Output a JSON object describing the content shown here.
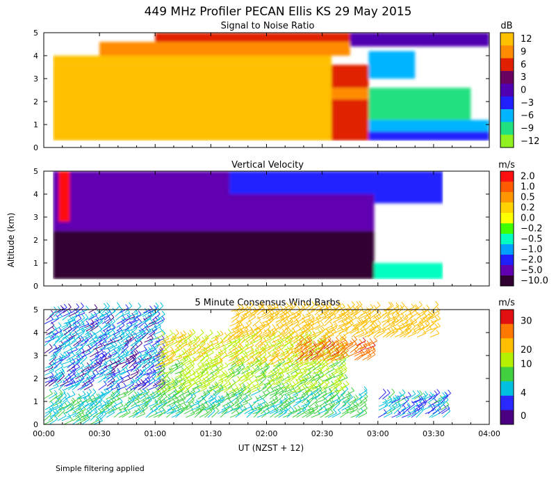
{
  "title": "449 MHz Profiler PECAN Ellis KS 29 May 2015",
  "ylabel": "Altitude (km)",
  "xlabel": "UT  (NZST + 12)",
  "footnote": "Simple filtering applied",
  "chart_data": [
    {
      "type": "heatmap",
      "title": "Signal to Noise Ratio",
      "unit": "dB",
      "xlim": [
        0,
        240
      ],
      "ylim": [
        0,
        5
      ],
      "x_ticks": [
        "00:00",
        "00:30",
        "01:00",
        "01:30",
        "02:00",
        "02:30",
        "03:00",
        "03:30",
        "04:00"
      ],
      "y_ticks": [
        "0",
        "1",
        "2",
        "3",
        "4",
        "5"
      ],
      "colorbar": {
        "labels": [
          "12",
          "9",
          "6",
          "3",
          "0",
          "−3",
          "−6",
          "−9",
          "−12"
        ],
        "colors": [
          "#ffc000",
          "#ff8c00",
          "#e02000",
          "#6a0060",
          "#5000b0",
          "#2020ff",
          "#00b4ff",
          "#20e080",
          "#90f020"
        ]
      },
      "regions": [
        {
          "x": [
            5,
            155
          ],
          "z": [
            0.3,
            3.6
          ],
          "db": 12
        },
        {
          "x": [
            5,
            155
          ],
          "z": [
            3.6,
            4.0
          ],
          "db": 12
        },
        {
          "x": [
            155,
            175
          ],
          "z": [
            0.3,
            2.1
          ],
          "db": 6
        },
        {
          "x": [
            155,
            175
          ],
          "z": [
            2.1,
            2.6
          ],
          "db": 9
        },
        {
          "x": [
            155,
            175
          ],
          "z": [
            2.6,
            3.6
          ],
          "db": 6
        },
        {
          "x": [
            175,
            240
          ],
          "z": [
            0.3,
            0.7
          ],
          "db": -3
        },
        {
          "x": [
            175,
            240
          ],
          "z": [
            0.7,
            1.2
          ],
          "db": -6
        },
        {
          "x": [
            175,
            230
          ],
          "z": [
            1.2,
            2.6
          ],
          "db": -9
        },
        {
          "x": [
            175,
            200
          ],
          "z": [
            3.0,
            4.2
          ],
          "db": -6
        },
        {
          "x": [
            30,
            165
          ],
          "z": [
            4.0,
            4.6
          ],
          "db": 9
        },
        {
          "x": [
            60,
            165
          ],
          "z": [
            4.6,
            5.0
          ],
          "db": 6
        },
        {
          "x": [
            165,
            240
          ],
          "z": [
            4.4,
            5.0
          ],
          "db": 0
        }
      ]
    },
    {
      "type": "heatmap",
      "title": "Vertical Velocity",
      "unit": "m/s",
      "xlim": [
        0,
        240
      ],
      "ylim": [
        0,
        5
      ],
      "x_ticks": [
        "00:00",
        "00:30",
        "01:00",
        "01:30",
        "02:00",
        "02:30",
        "03:00",
        "03:30",
        "04:00"
      ],
      "y_ticks": [
        "0",
        "1",
        "2",
        "3",
        "4",
        "5"
      ],
      "colorbar": {
        "labels": [
          "2.0",
          "1.0",
          "0.5",
          "0.2",
          "0.0",
          "−0.2",
          "−0.5",
          "−1.0",
          "−2.0",
          "−5.0",
          "−10.0"
        ],
        "colors": [
          "#ff1010",
          "#ff5a00",
          "#ff9600",
          "#ffd200",
          "#ffff00",
          "#40ff00",
          "#00ffc0",
          "#00a0ff",
          "#2020ff",
          "#6000b0",
          "#300030"
        ]
      },
      "regions": [
        {
          "x": [
            5,
            178
          ],
          "z": [
            0.3,
            2.4
          ],
          "w": -10.0
        },
        {
          "x": [
            5,
            178
          ],
          "z": [
            2.4,
            5.0
          ],
          "w": -5.0
        },
        {
          "x": [
            8,
            14
          ],
          "z": [
            2.8,
            5.0
          ],
          "w": 2.0
        },
        {
          "x": [
            100,
            178
          ],
          "z": [
            4.0,
            5.0
          ],
          "w": -2.0
        },
        {
          "x": [
            178,
            215
          ],
          "z": [
            0.3,
            1.0
          ],
          "w": -0.5
        },
        {
          "x": [
            178,
            215
          ],
          "z": [
            3.6,
            5.0
          ],
          "w": -2.0
        }
      ]
    },
    {
      "type": "wind_barbs",
      "title": "5 Minute Consensus Wind Barbs",
      "unit": "m/s",
      "xlim": [
        0,
        240
      ],
      "ylim": [
        0,
        5
      ],
      "x_ticks": [
        "00:00",
        "00:30",
        "01:00",
        "01:30",
        "02:00",
        "02:30",
        "03:00",
        "03:30",
        "04:00"
      ],
      "y_ticks": [
        "0",
        "1",
        "2",
        "3",
        "4",
        "5"
      ],
      "colorbar": {
        "labels": [
          "30",
          "20",
          "10",
          "4",
          "0"
        ],
        "colors": [
          "#e01010",
          "#ff7800",
          "#ffbe00",
          "#b4f000",
          "#40d040",
          "#00c0e0",
          "#2828ff",
          "#4b0082"
        ]
      },
      "bands": [
        {
          "x": [
            0,
            30
          ],
          "z": [
            0.0,
            1.2
          ],
          "speed": 8
        },
        {
          "x": [
            30,
            170
          ],
          "z": [
            0.3,
            1.4
          ],
          "speed": 9
        },
        {
          "x": [
            0,
            60
          ],
          "z": [
            1.5,
            5.0
          ],
          "speed": 5
        },
        {
          "x": [
            60,
            160
          ],
          "z": [
            1.4,
            2.6
          ],
          "speed": 13
        },
        {
          "x": [
            60,
            160
          ],
          "z": [
            2.6,
            3.8
          ],
          "speed": 19
        },
        {
          "x": [
            135,
            175
          ],
          "z": [
            2.8,
            3.6
          ],
          "speed": 28
        },
        {
          "x": [
            100,
            210
          ],
          "z": [
            3.8,
            5.0
          ],
          "speed": 22
        },
        {
          "x": [
            180,
            215
          ],
          "z": [
            0.3,
            1.2
          ],
          "speed": 6
        }
      ]
    }
  ]
}
